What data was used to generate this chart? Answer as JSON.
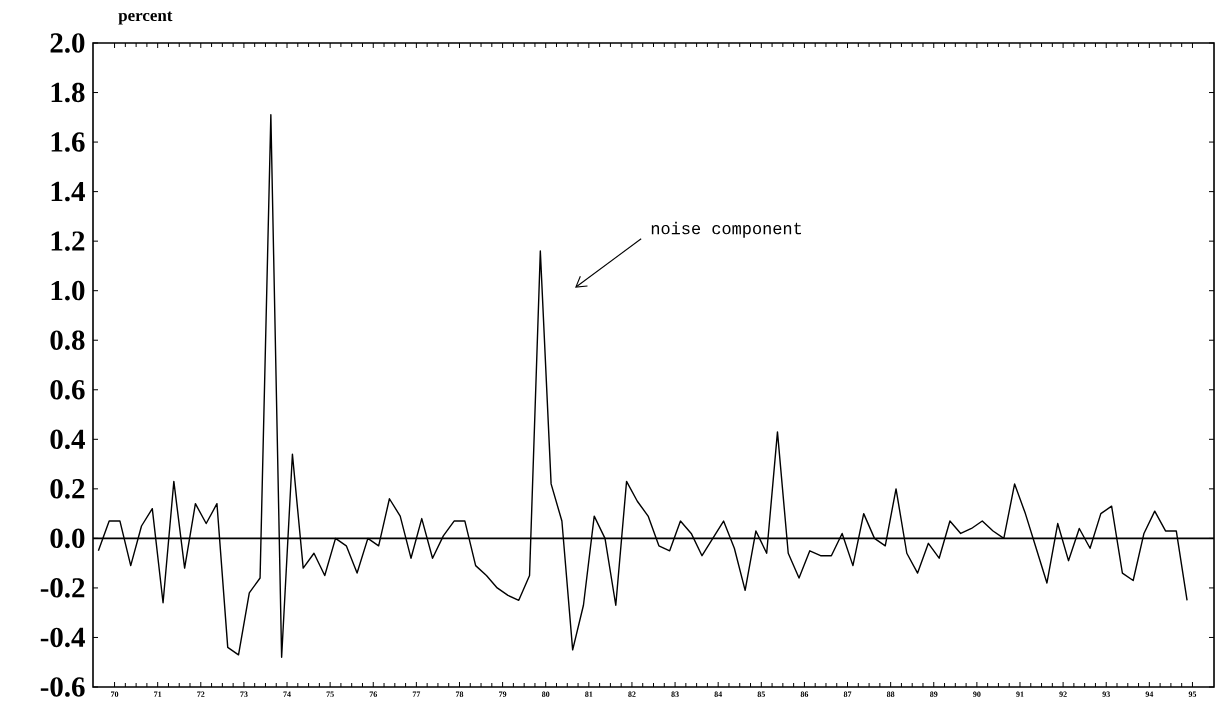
{
  "chart_data": {
    "type": "line",
    "ylabel": "percent",
    "x": [
      69.625,
      69.875,
      70.125,
      70.375,
      70.625,
      70.875,
      71.125,
      71.375,
      71.625,
      71.875,
      72.125,
      72.375,
      72.625,
      72.875,
      73.125,
      73.375,
      73.625,
      73.875,
      74.125,
      74.375,
      74.625,
      74.875,
      75.125,
      75.375,
      75.625,
      75.875,
      76.125,
      76.375,
      76.625,
      76.875,
      77.125,
      77.375,
      77.625,
      77.875,
      78.125,
      78.375,
      78.625,
      78.875,
      79.125,
      79.375,
      79.625,
      79.875,
      80.125,
      80.375,
      80.625,
      80.875,
      81.125,
      81.375,
      81.625,
      81.875,
      82.125,
      82.375,
      82.625,
      82.875,
      83.125,
      83.375,
      83.625,
      83.875,
      84.125,
      84.375,
      84.625,
      84.875,
      85.125,
      85.375,
      85.625,
      85.875,
      86.125,
      86.375,
      86.625,
      86.875,
      87.125,
      87.375,
      87.625,
      87.875,
      88.125,
      88.375,
      88.625,
      88.875,
      89.125,
      89.375,
      89.625,
      89.875,
      90.125,
      90.375,
      90.625,
      90.875,
      91.125,
      91.375,
      91.625,
      91.875,
      92.125,
      92.375,
      92.625,
      92.875,
      93.125,
      93.375,
      93.625,
      93.875,
      94.125,
      94.375,
      94.625,
      94.875
    ],
    "series": [
      {
        "color": "#000000",
        "values": [
          -0.05,
          0.07,
          0.07,
          -0.11,
          0.05,
          0.12,
          -0.26,
          0.23,
          -0.12,
          0.14,
          0.06,
          0.14,
          -0.44,
          -0.47,
          -0.22,
          -0.16,
          1.71,
          -0.48,
          0.34,
          -0.12,
          -0.06,
          -0.15,
          0.0,
          -0.03,
          -0.14,
          0.0,
          -0.03,
          0.16,
          0.09,
          -0.08,
          0.08,
          -0.08,
          0.01,
          0.07,
          0.07,
          -0.11,
          -0.15,
          -0.2,
          -0.23,
          -0.25,
          -0.15,
          1.16,
          0.22,
          0.07,
          -0.45,
          -0.27,
          0.09,
          0.0,
          -0.27,
          0.23,
          0.15,
          0.09,
          -0.03,
          -0.05,
          0.07,
          0.02,
          -0.07,
          0.0,
          0.07,
          -0.04,
          -0.21,
          0.03,
          -0.06,
          0.43,
          -0.06,
          -0.16,
          -0.05,
          -0.07,
          -0.07,
          0.02,
          -0.11,
          0.1,
          0.0,
          -0.03,
          0.2,
          -0.06,
          -0.14,
          -0.02,
          -0.08,
          0.07,
          0.02,
          0.04,
          0.07,
          0.03,
          0.0,
          0.22,
          0.1,
          -0.04,
          -0.18,
          0.06,
          -0.09,
          0.04,
          -0.04,
          0.1,
          0.13,
          -0.14,
          -0.17,
          0.02,
          0.11,
          0.03,
          0.03,
          -0.25
        ]
      }
    ],
    "xlim": [
      69.5,
      95.5
    ],
    "ylim": [
      -0.6,
      2.0
    ],
    "xticks": [
      70,
      71,
      72,
      73,
      74,
      75,
      76,
      77,
      78,
      79,
      80,
      81,
      82,
      83,
      84,
      85,
      86,
      87,
      88,
      89,
      90,
      91,
      92,
      93,
      94,
      95
    ],
    "yticks": [
      {
        "value": -0.6,
        "label": "-0.6"
      },
      {
        "value": -0.4,
        "label": "-0.4"
      },
      {
        "value": -0.2,
        "label": "-0.2"
      },
      {
        "value": 0,
        "label": "0.0"
      },
      {
        "value": 0.2,
        "label": "0.2"
      },
      {
        "value": 0.4,
        "label": "0.4"
      },
      {
        "value": 0.6,
        "label": "0.6"
      },
      {
        "value": 0.8,
        "label": "0.8"
      },
      {
        "value": 1.0,
        "label": "1.0"
      },
      {
        "value": 1.2,
        "label": "1.2"
      },
      {
        "value": 1.4,
        "label": "1.4"
      },
      {
        "value": 1.6,
        "label": "1.6"
      },
      {
        "value": 1.8,
        "label": "1.8"
      },
      {
        "value": 2.0,
        "label": "2.0"
      }
    ],
    "ref_lines": [
      {
        "axis": "y",
        "value": 0,
        "color": "#000000"
      }
    ],
    "annotations": [
      "noise component"
    ]
  }
}
